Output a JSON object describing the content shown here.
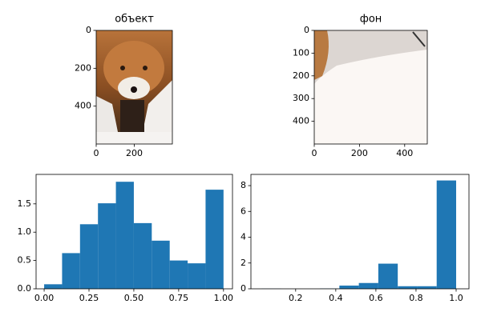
{
  "chart_data": [
    {
      "type": "image",
      "title": "объект",
      "xlim": [
        0,
        400
      ],
      "ylim": [
        600,
        0
      ],
      "xticks": [
        0,
        200
      ],
      "yticks": [
        0,
        200,
        400
      ]
    },
    {
      "type": "image",
      "title": "фон",
      "xlim": [
        0,
        500
      ],
      "ylim": [
        500,
        0
      ],
      "xticks": [
        0,
        200,
        400
      ],
      "yticks": [
        0,
        100,
        200,
        300,
        400
      ]
    },
    {
      "type": "histogram",
      "color": "#1f77b4",
      "bins": [
        0,
        0.1,
        0.2,
        0.3,
        0.4,
        0.5,
        0.6,
        0.7,
        0.8,
        0.9,
        1.0
      ],
      "values": [
        0.08,
        0.63,
        1.14,
        1.51,
        1.89,
        1.16,
        0.85,
        0.5,
        0.45,
        1.75
      ],
      "xlim": [
        -0.045,
        1.05
      ],
      "ylim": [
        0,
        2.02
      ],
      "xticks": [
        {
          "value": 0,
          "label": "0.00"
        },
        0.25,
        {
          "value": 0.5,
          "label": "0.50"
        },
        0.75,
        {
          "value": 1,
          "label": "1.00"
        }
      ],
      "yticks": [
        {
          "value": 0,
          "label": "0.0"
        },
        0.5,
        {
          "value": 1,
          "label": "1.0"
        },
        1.5
      ]
    },
    {
      "type": "histogram",
      "color": "#1f77b4",
      "bins": [
        0.03,
        0.127,
        0.224,
        0.321,
        0.418,
        0.515,
        0.612,
        0.709,
        0.806,
        0.903,
        1.0
      ],
      "values": [
        0.01,
        0,
        0,
        0.02,
        0.25,
        0.45,
        1.95,
        0.2,
        0.2,
        8.4
      ],
      "xlim": [
        -0.023,
        1.064
      ],
      "ylim": [
        0,
        8.87
      ],
      "xticks": [
        0.2,
        0.4,
        0.6,
        0.8,
        {
          "value": 1,
          "label": "1.0"
        }
      ],
      "yticks": [
        0,
        2,
        4,
        6,
        8
      ]
    }
  ]
}
